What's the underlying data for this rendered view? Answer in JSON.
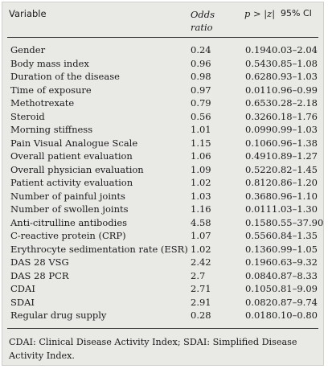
{
  "table": {
    "headers": {
      "variable": "Variable",
      "odds_ratio_line1": "Odds",
      "odds_ratio_line2": "ratio",
      "p_value": "p > |z|",
      "ci": "95% CI"
    },
    "rows": [
      {
        "variable": "Gender",
        "or": "0.24",
        "p": "0.194",
        "ci": "0.03–2.04"
      },
      {
        "variable": "Body mass index",
        "or": "0.96",
        "p": "0.543",
        "ci": "0.85–1.08"
      },
      {
        "variable": "Duration of the disease",
        "or": "0.98",
        "p": "0.628",
        "ci": "0.93–1.03"
      },
      {
        "variable": "Time of exposure",
        "or": "0.97",
        "p": "0.011",
        "ci": "0.96–0.99"
      },
      {
        "variable": "Methotrexate",
        "or": "0.79",
        "p": "0.653",
        "ci": "0.28–2.18"
      },
      {
        "variable": "Steroid",
        "or": "0.56",
        "p": "0.326",
        "ci": "0.18–1.76"
      },
      {
        "variable": "Morning stiffness",
        "or": "1.01",
        "p": "0.099",
        "ci": "0.99–1.03"
      },
      {
        "variable": "Pain Visual Analogue Scale",
        "or": "1.15",
        "p": "0.106",
        "ci": "0.96–1.38"
      },
      {
        "variable": "Overall patient evaluation",
        "or": "1.06",
        "p": "0.491",
        "ci": "0.89–1.27"
      },
      {
        "variable": "Overall physician evaluation",
        "or": "1.09",
        "p": "0.522",
        "ci": "0.82–1.45"
      },
      {
        "variable": "Patient activity evaluation",
        "or": "1.02",
        "p": "0.812",
        "ci": "0.86–1.20"
      },
      {
        "variable": "Number of painful joints",
        "or": "1.03",
        "p": "0.368",
        "ci": "0.96–1.10"
      },
      {
        "variable": "Number of swollen joints",
        "or": "1.16",
        "p": "0.011",
        "ci": "1.03–1.30"
      },
      {
        "variable": "Anti-citrulline antibodies",
        "or": "4.58",
        "p": "0.158",
        "ci": "0.55–37.90"
      },
      {
        "variable": "C-reactive protein (CRP)",
        "or": "1.07",
        "p": "0.556",
        "ci": "0.84–1.35"
      },
      {
        "variable": "Erythrocyte sedimentation rate (ESR)",
        "or": "1.02",
        "p": "0.136",
        "ci": "0.99–1.05"
      },
      {
        "variable": "DAS 28 VSG",
        "or": "2.42",
        "p": "0.196",
        "ci": "0.63–9.32"
      },
      {
        "variable": "DAS 28 PCR",
        "or": "2.7",
        "p": "0.084",
        "ci": "0.87–8.33"
      },
      {
        "variable": "CDAI",
        "or": "2.71",
        "p": "0.105",
        "ci": "0.81–9.09"
      },
      {
        "variable": "SDAI",
        "or": "2.91",
        "p": "0.082",
        "ci": "0.87–9.74"
      },
      {
        "variable": "Regular drug supply",
        "or": "0.28",
        "p": "0.018",
        "ci": "0.10–0.80"
      }
    ],
    "footnote": "CDAI: Clinical Disease Activity Index; SDAI: Simplified Disease Activity Index."
  }
}
